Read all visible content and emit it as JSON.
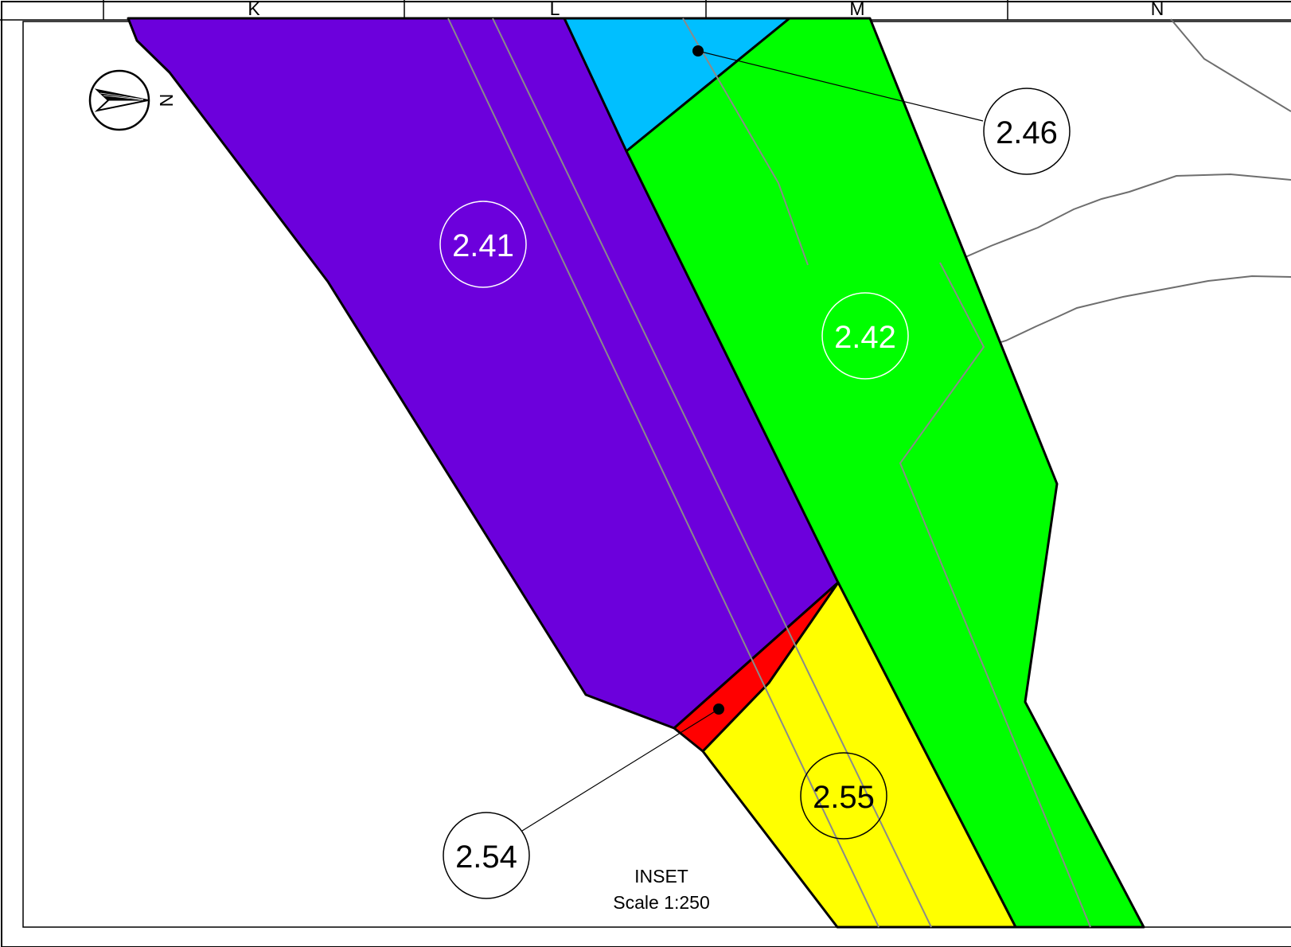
{
  "grid_columns": [
    "K",
    "L",
    "M",
    "N"
  ],
  "parcels": [
    {
      "id": "2.41",
      "color": "#6c00dc",
      "label_color": "#ffffff"
    },
    {
      "id": "2.42",
      "color": "#00ff00",
      "label_color": "#ffffff"
    },
    {
      "id": "2.46",
      "color": "#00bfff",
      "label_color": "#000000"
    },
    {
      "id": "2.54",
      "color": "#ff0000",
      "label_color": "#000000"
    },
    {
      "id": "2.55",
      "color": "#ffff00",
      "label_color": "#000000"
    }
  ],
  "north_arrow": {
    "icon": "north-arrow-icon",
    "label": "N"
  },
  "inset": {
    "title": "INSET",
    "scale": "Scale 1:250"
  }
}
